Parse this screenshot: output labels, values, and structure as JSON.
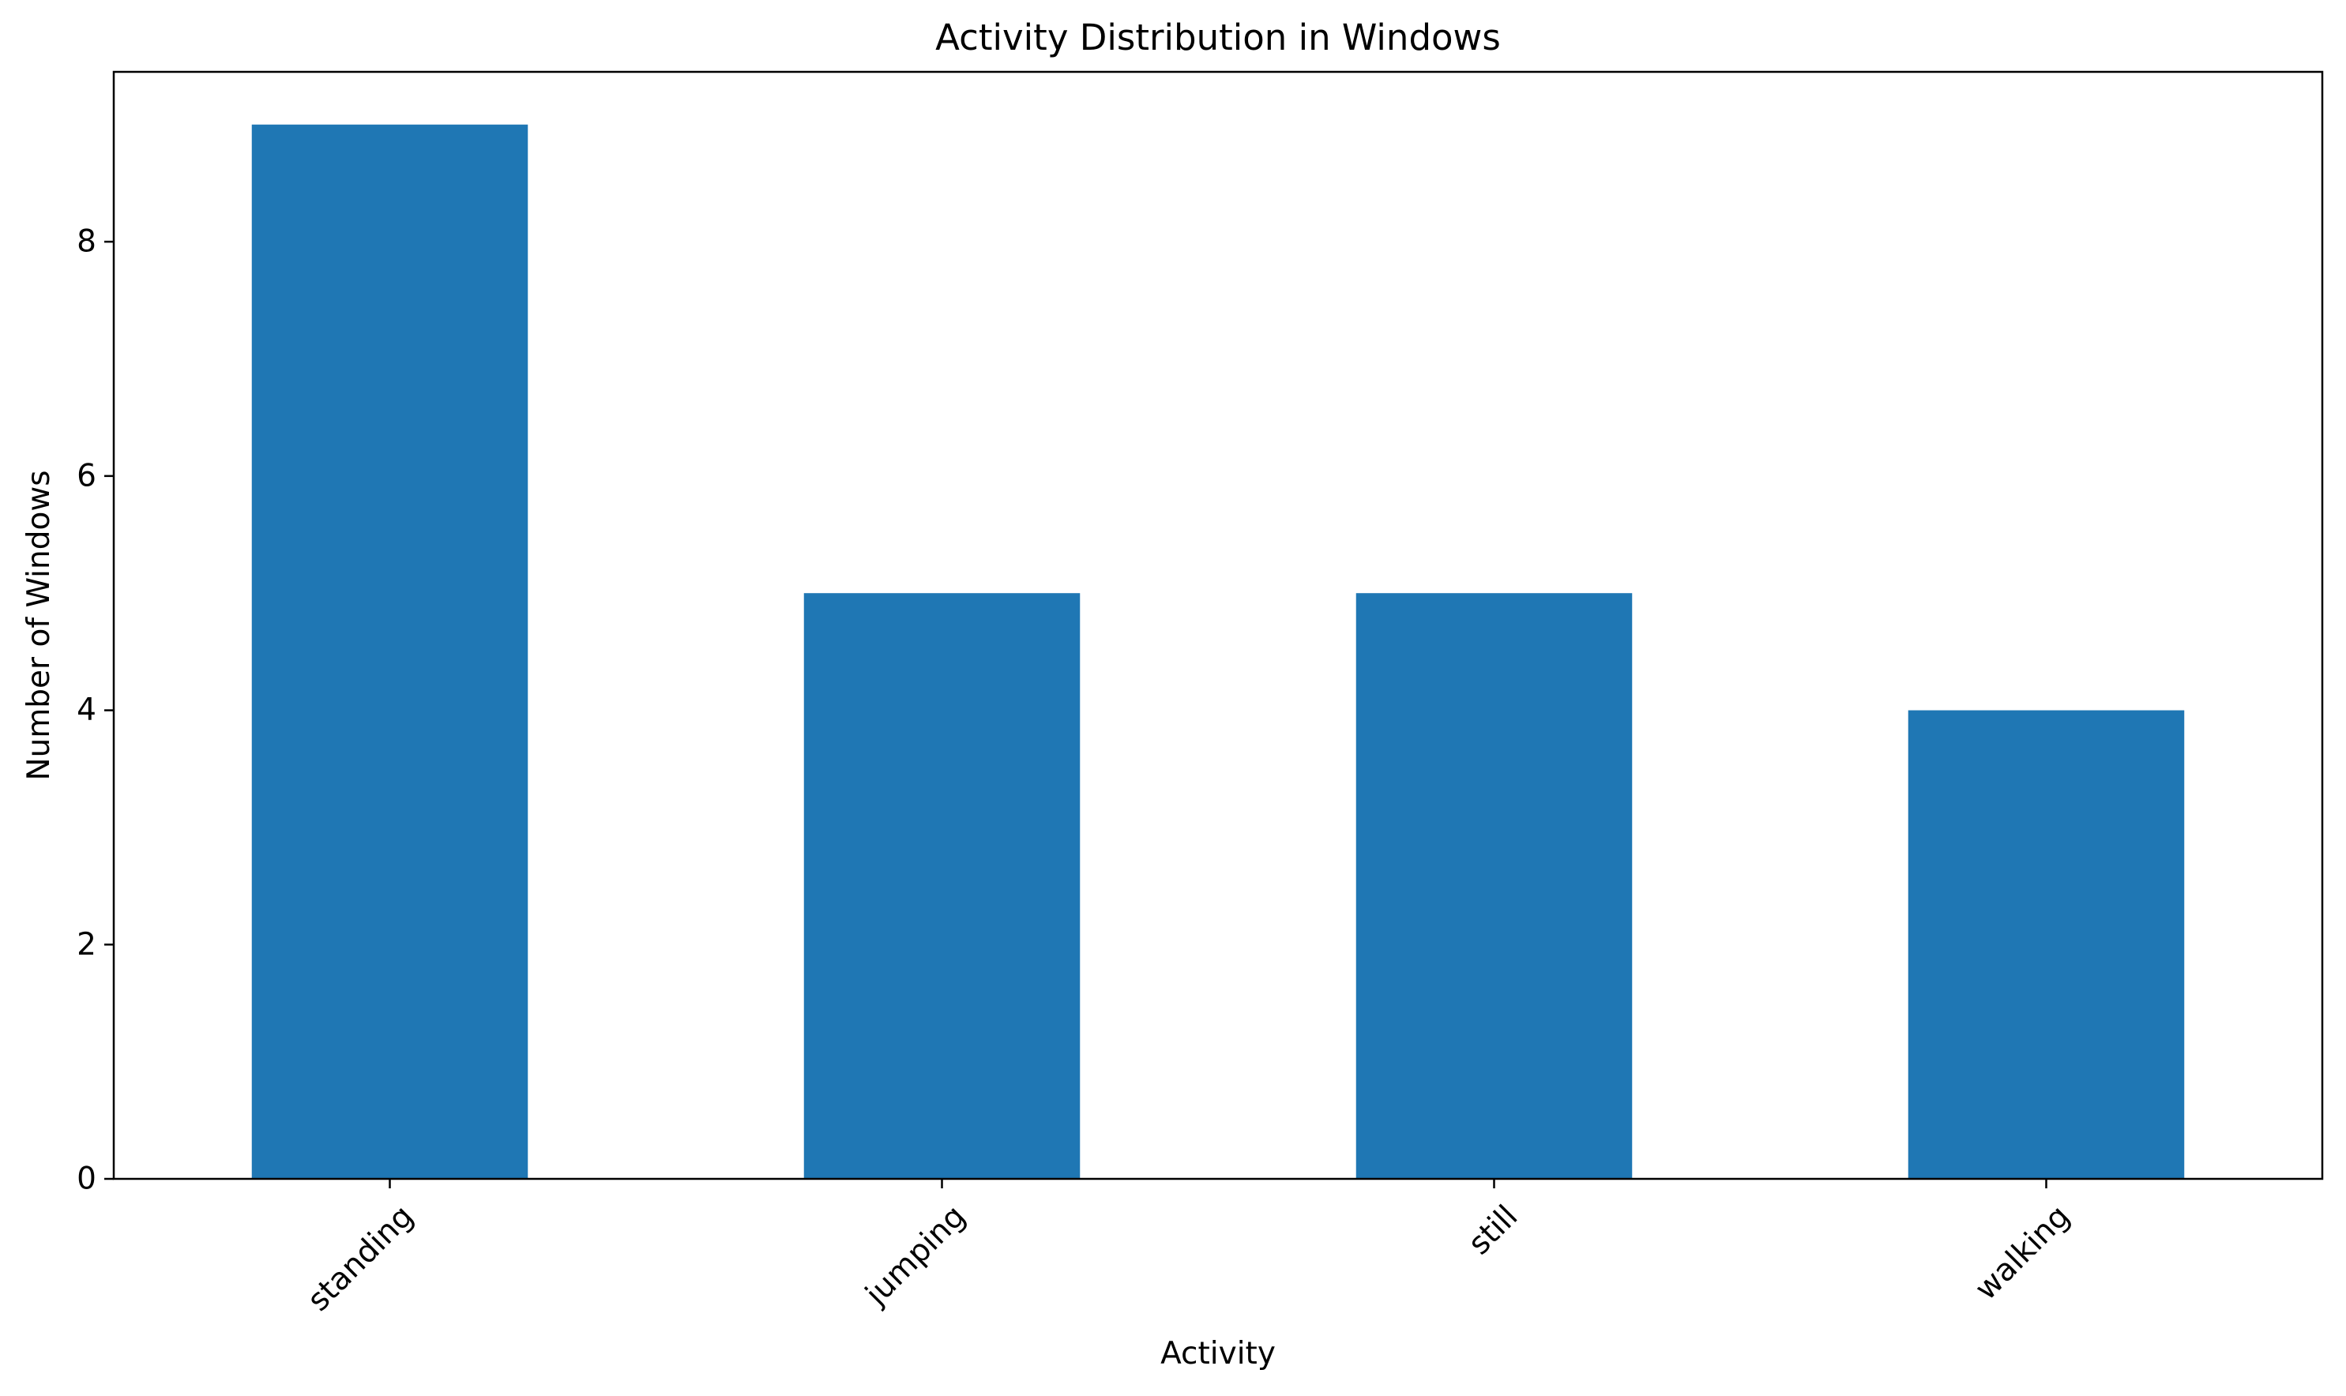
{
  "chart_data": {
    "type": "bar",
    "title": "Activity Distribution in Windows",
    "xlabel": "Activity",
    "ylabel": "Number of Windows",
    "categories": [
      "standing",
      "jumping",
      "still",
      "walking"
    ],
    "values": [
      9,
      5,
      5,
      4
    ],
    "ylim": [
      0,
      9.45
    ],
    "yticks": [
      0,
      2,
      4,
      6,
      8
    ],
    "bar_color": "#1f77b4",
    "grid": false,
    "legend": "none"
  }
}
